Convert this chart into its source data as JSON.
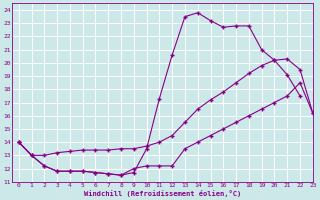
{
  "xlabel": "Windchill (Refroidissement éolien,°C)",
  "xlim": [
    -0.5,
    23
  ],
  "ylim": [
    11,
    24.5
  ],
  "xticks": [
    0,
    1,
    2,
    3,
    4,
    5,
    6,
    7,
    8,
    9,
    10,
    11,
    12,
    13,
    14,
    15,
    16,
    17,
    18,
    19,
    20,
    21,
    22,
    23
  ],
  "yticks": [
    11,
    12,
    13,
    14,
    15,
    16,
    17,
    18,
    19,
    20,
    21,
    22,
    23,
    24
  ],
  "bg_color": "#cde8e8",
  "line_color": "#880088",
  "grid_color": "#bbdddd",
  "series1_x": [
    0,
    1,
    2,
    3,
    4,
    5,
    6,
    7,
    8,
    9,
    10,
    11,
    12,
    13,
    14,
    15,
    16,
    17,
    18,
    19,
    20,
    21,
    22
  ],
  "series1_y": [
    14.0,
    13.0,
    12.2,
    11.8,
    11.8,
    11.8,
    11.7,
    11.6,
    11.5,
    11.7,
    13.5,
    17.3,
    20.6,
    23.5,
    23.8,
    23.2,
    22.7,
    22.8,
    22.8,
    21.0,
    20.2,
    19.1,
    17.5
  ],
  "series2_x": [
    0,
    1,
    2,
    3,
    4,
    5,
    6,
    7,
    8,
    9,
    10,
    11,
    12,
    13,
    14,
    15,
    16,
    17,
    18,
    19,
    20,
    21,
    22,
    23
  ],
  "series2_y": [
    14.0,
    13.0,
    13.0,
    13.2,
    13.3,
    13.4,
    13.4,
    13.4,
    13.5,
    13.5,
    13.7,
    14.0,
    14.5,
    15.5,
    16.5,
    17.2,
    17.8,
    18.5,
    19.2,
    19.8,
    20.2,
    20.3,
    19.5,
    16.2
  ],
  "series3_x": [
    0,
    1,
    2,
    3,
    4,
    5,
    6,
    7,
    8,
    9,
    10,
    11,
    12,
    13,
    14,
    15,
    16,
    17,
    18,
    19,
    20,
    21,
    22,
    23
  ],
  "series3_y": [
    14.0,
    13.0,
    12.2,
    11.8,
    11.8,
    11.8,
    11.7,
    11.6,
    11.5,
    12.0,
    12.2,
    12.2,
    12.2,
    13.5,
    14.0,
    14.5,
    15.0,
    15.5,
    16.0,
    16.5,
    17.0,
    17.5,
    18.5,
    16.2
  ]
}
